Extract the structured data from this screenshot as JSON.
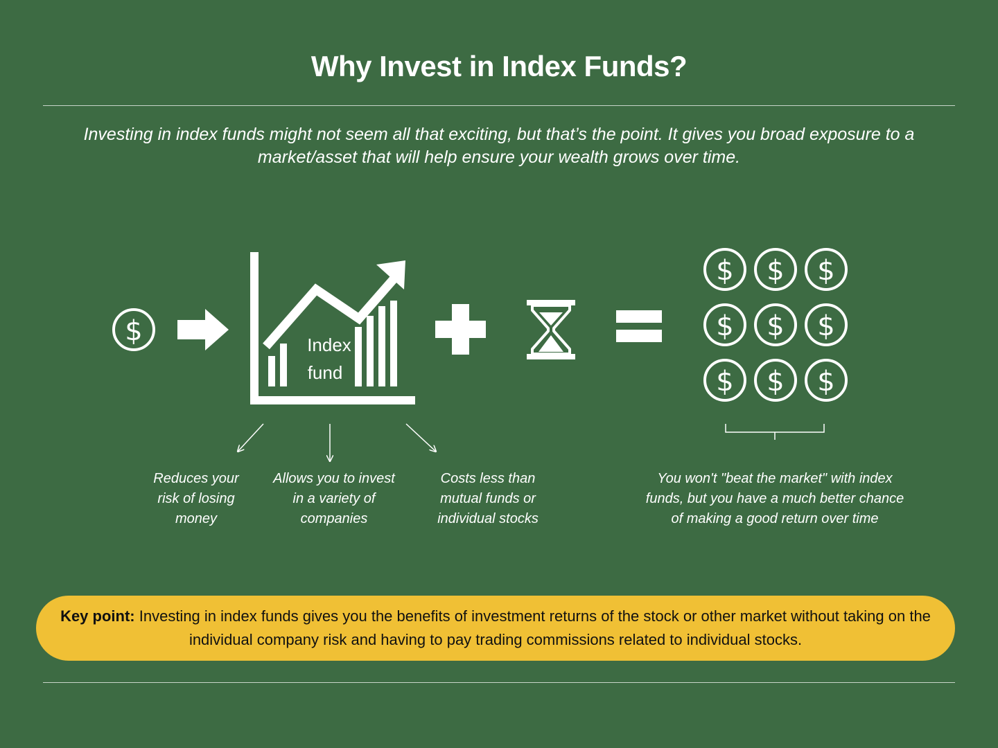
{
  "title": "Why Invest in Index Funds?",
  "subtitle": "Investing in index funds might not seem all that exciting, but that’s the point. It gives you broad exposure to a market/asset that will help ensure your wealth grows over time.",
  "diagram": {
    "chart_label_line1": "Index",
    "chart_label_line2": "fund",
    "benefits": [
      {
        "line1": "Reduces your",
        "line2": "risk of losing",
        "line3": "money"
      },
      {
        "line1": "Allows you to invest",
        "line2": "in a variety of",
        "line3": "companies"
      },
      {
        "line1": "Costs less than",
        "line2": "mutual funds or",
        "line3": "individual stocks"
      }
    ],
    "outcome": {
      "line1": "You won't \"beat the market\" with index",
      "line2": "funds, but you have a much better chance",
      "line3": "of making a good return over time"
    }
  },
  "key_point": {
    "label": "Key point:",
    "text": " Investing in index funds gives you the benefits of investment returns of the stock or other market without taking on the individual company risk and having to pay trading commissions related to individual stocks."
  },
  "colors": {
    "background": "#3d6b43",
    "key_point_bg": "#f0c035",
    "foreground": "#ffffff"
  }
}
